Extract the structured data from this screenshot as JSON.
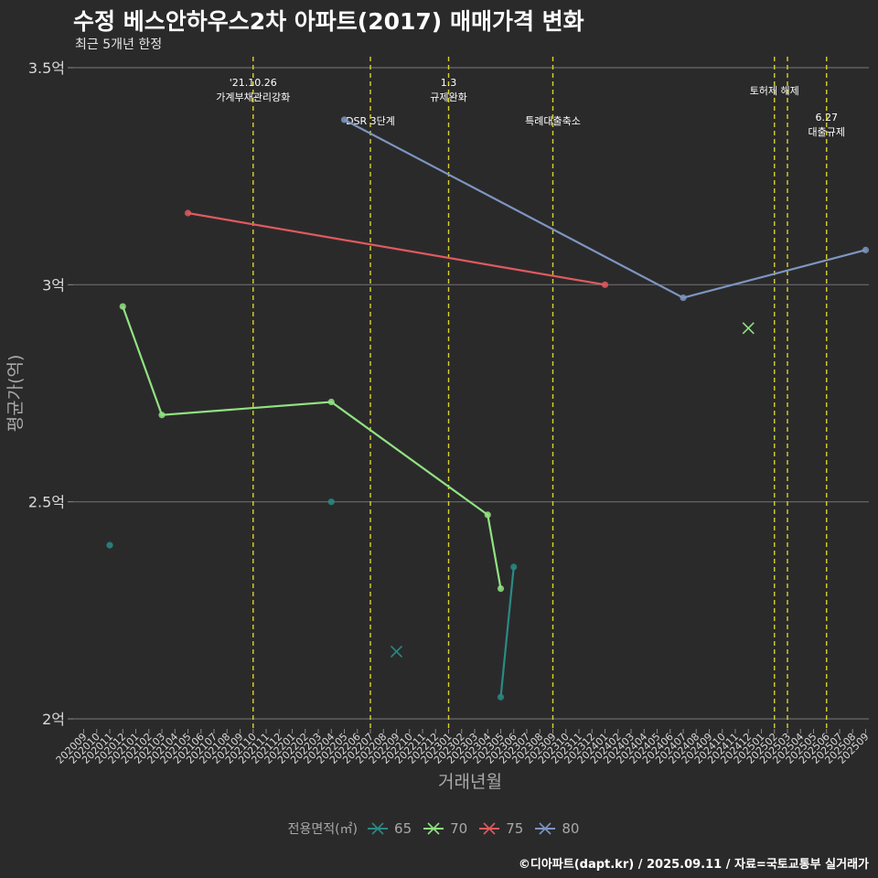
{
  "title": "수정 베스안하우스2차 아파트(2017) 매매가격 변화",
  "subtitle": "최근 5개년 한정",
  "caption": "©디아파트(dapt.kr) / 2025.09.11 / 자료=국토교통부 실거래가",
  "chart_data": {
    "type": "line",
    "title": "수정 베스안하우스2차 아파트(2017) 매매가격 변화",
    "xlabel": "거래년월",
    "ylabel": "평균가(억)",
    "ylim": [
      2.0,
      3.5
    ],
    "yticks": [
      2.0,
      2.5,
      3.0,
      3.5
    ],
    "ytick_labels": [
      "2억",
      "2.5억",
      "3억",
      "3.5억"
    ],
    "x": [
      "202009",
      "202010",
      "202011",
      "202012",
      "202101",
      "202102",
      "202103",
      "202104",
      "202105",
      "202106",
      "202107",
      "202108",
      "202109",
      "202110",
      "202111",
      "202112",
      "202201",
      "202202",
      "202203",
      "202204",
      "202205",
      "202206",
      "202207",
      "202208",
      "202209",
      "202210",
      "202211",
      "202212",
      "202301",
      "202302",
      "202303",
      "202304",
      "202305",
      "202306",
      "202307",
      "202308",
      "202309",
      "202310",
      "202311",
      "202312",
      "202401",
      "202402",
      "202403",
      "202404",
      "202405",
      "202406",
      "202407",
      "202408",
      "202409",
      "202410",
      "202411",
      "202412",
      "202501",
      "202502",
      "202503",
      "202504",
      "202505",
      "202506",
      "202507",
      "202508",
      "202509"
    ],
    "legend_title": "전용면적(㎡)",
    "series": [
      {
        "name": "65",
        "color": "#2a8a84",
        "points": [
          {
            "x": "202011",
            "y": 2.4
          },
          {
            "x": "202204",
            "y": 2.5
          },
          {
            "x": "202305",
            "y": 2.05
          },
          {
            "x": "202306",
            "y": 2.35
          }
        ],
        "line_segments": [
          [
            "202305",
            "202306"
          ]
        ],
        "cross_points": [
          {
            "x": "202209",
            "y": 2.155
          }
        ]
      },
      {
        "name": "70",
        "color": "#90e381",
        "points": [
          {
            "x": "202012",
            "y": 2.95
          },
          {
            "x": "202103",
            "y": 2.7
          },
          {
            "x": "202204",
            "y": 2.73
          },
          {
            "x": "202304",
            "y": 2.47
          },
          {
            "x": "202305",
            "y": 2.3
          }
        ],
        "line_segments": [
          [
            "202012",
            "202103",
            "202204",
            "202304",
            "202305"
          ]
        ],
        "cross_points": [
          {
            "x": "202412",
            "y": 2.9
          }
        ]
      },
      {
        "name": "75",
        "color": "#e05a5e",
        "points": [
          {
            "x": "202105",
            "y": 3.165
          },
          {
            "x": "202401",
            "y": 3.0
          }
        ],
        "line_segments": [
          [
            "202105",
            "202401"
          ]
        ],
        "cross_points": []
      },
      {
        "name": "80",
        "color": "#7d96c1",
        "points": [
          {
            "x": "202205",
            "y": 3.38
          },
          {
            "x": "202407",
            "y": 2.97
          },
          {
            "x": "202509",
            "y": 3.08
          }
        ],
        "line_segments": [
          [
            "202205",
            "202407",
            "202509"
          ]
        ],
        "cross_points": []
      }
    ],
    "events": [
      {
        "x": "202110",
        "lines": [
          "'21.10.26",
          "가계부채관리강화"
        ],
        "row": 1
      },
      {
        "x": "202207",
        "lines": [
          "DSR 3단계"
        ],
        "row": 2
      },
      {
        "x": "202301",
        "lines": [
          "1.3",
          "규제완화"
        ],
        "row": 1
      },
      {
        "x": "202309",
        "lines": [
          "특례대출축소"
        ],
        "row": 2
      },
      {
        "x": "202502",
        "lines": [
          "토허제 해제"
        ],
        "row": 1
      },
      {
        "x": "202503",
        "lines": [],
        "row": 1
      },
      {
        "x": "202506",
        "lines": [
          "6.27",
          "대출규제"
        ],
        "row": 2
      }
    ]
  }
}
